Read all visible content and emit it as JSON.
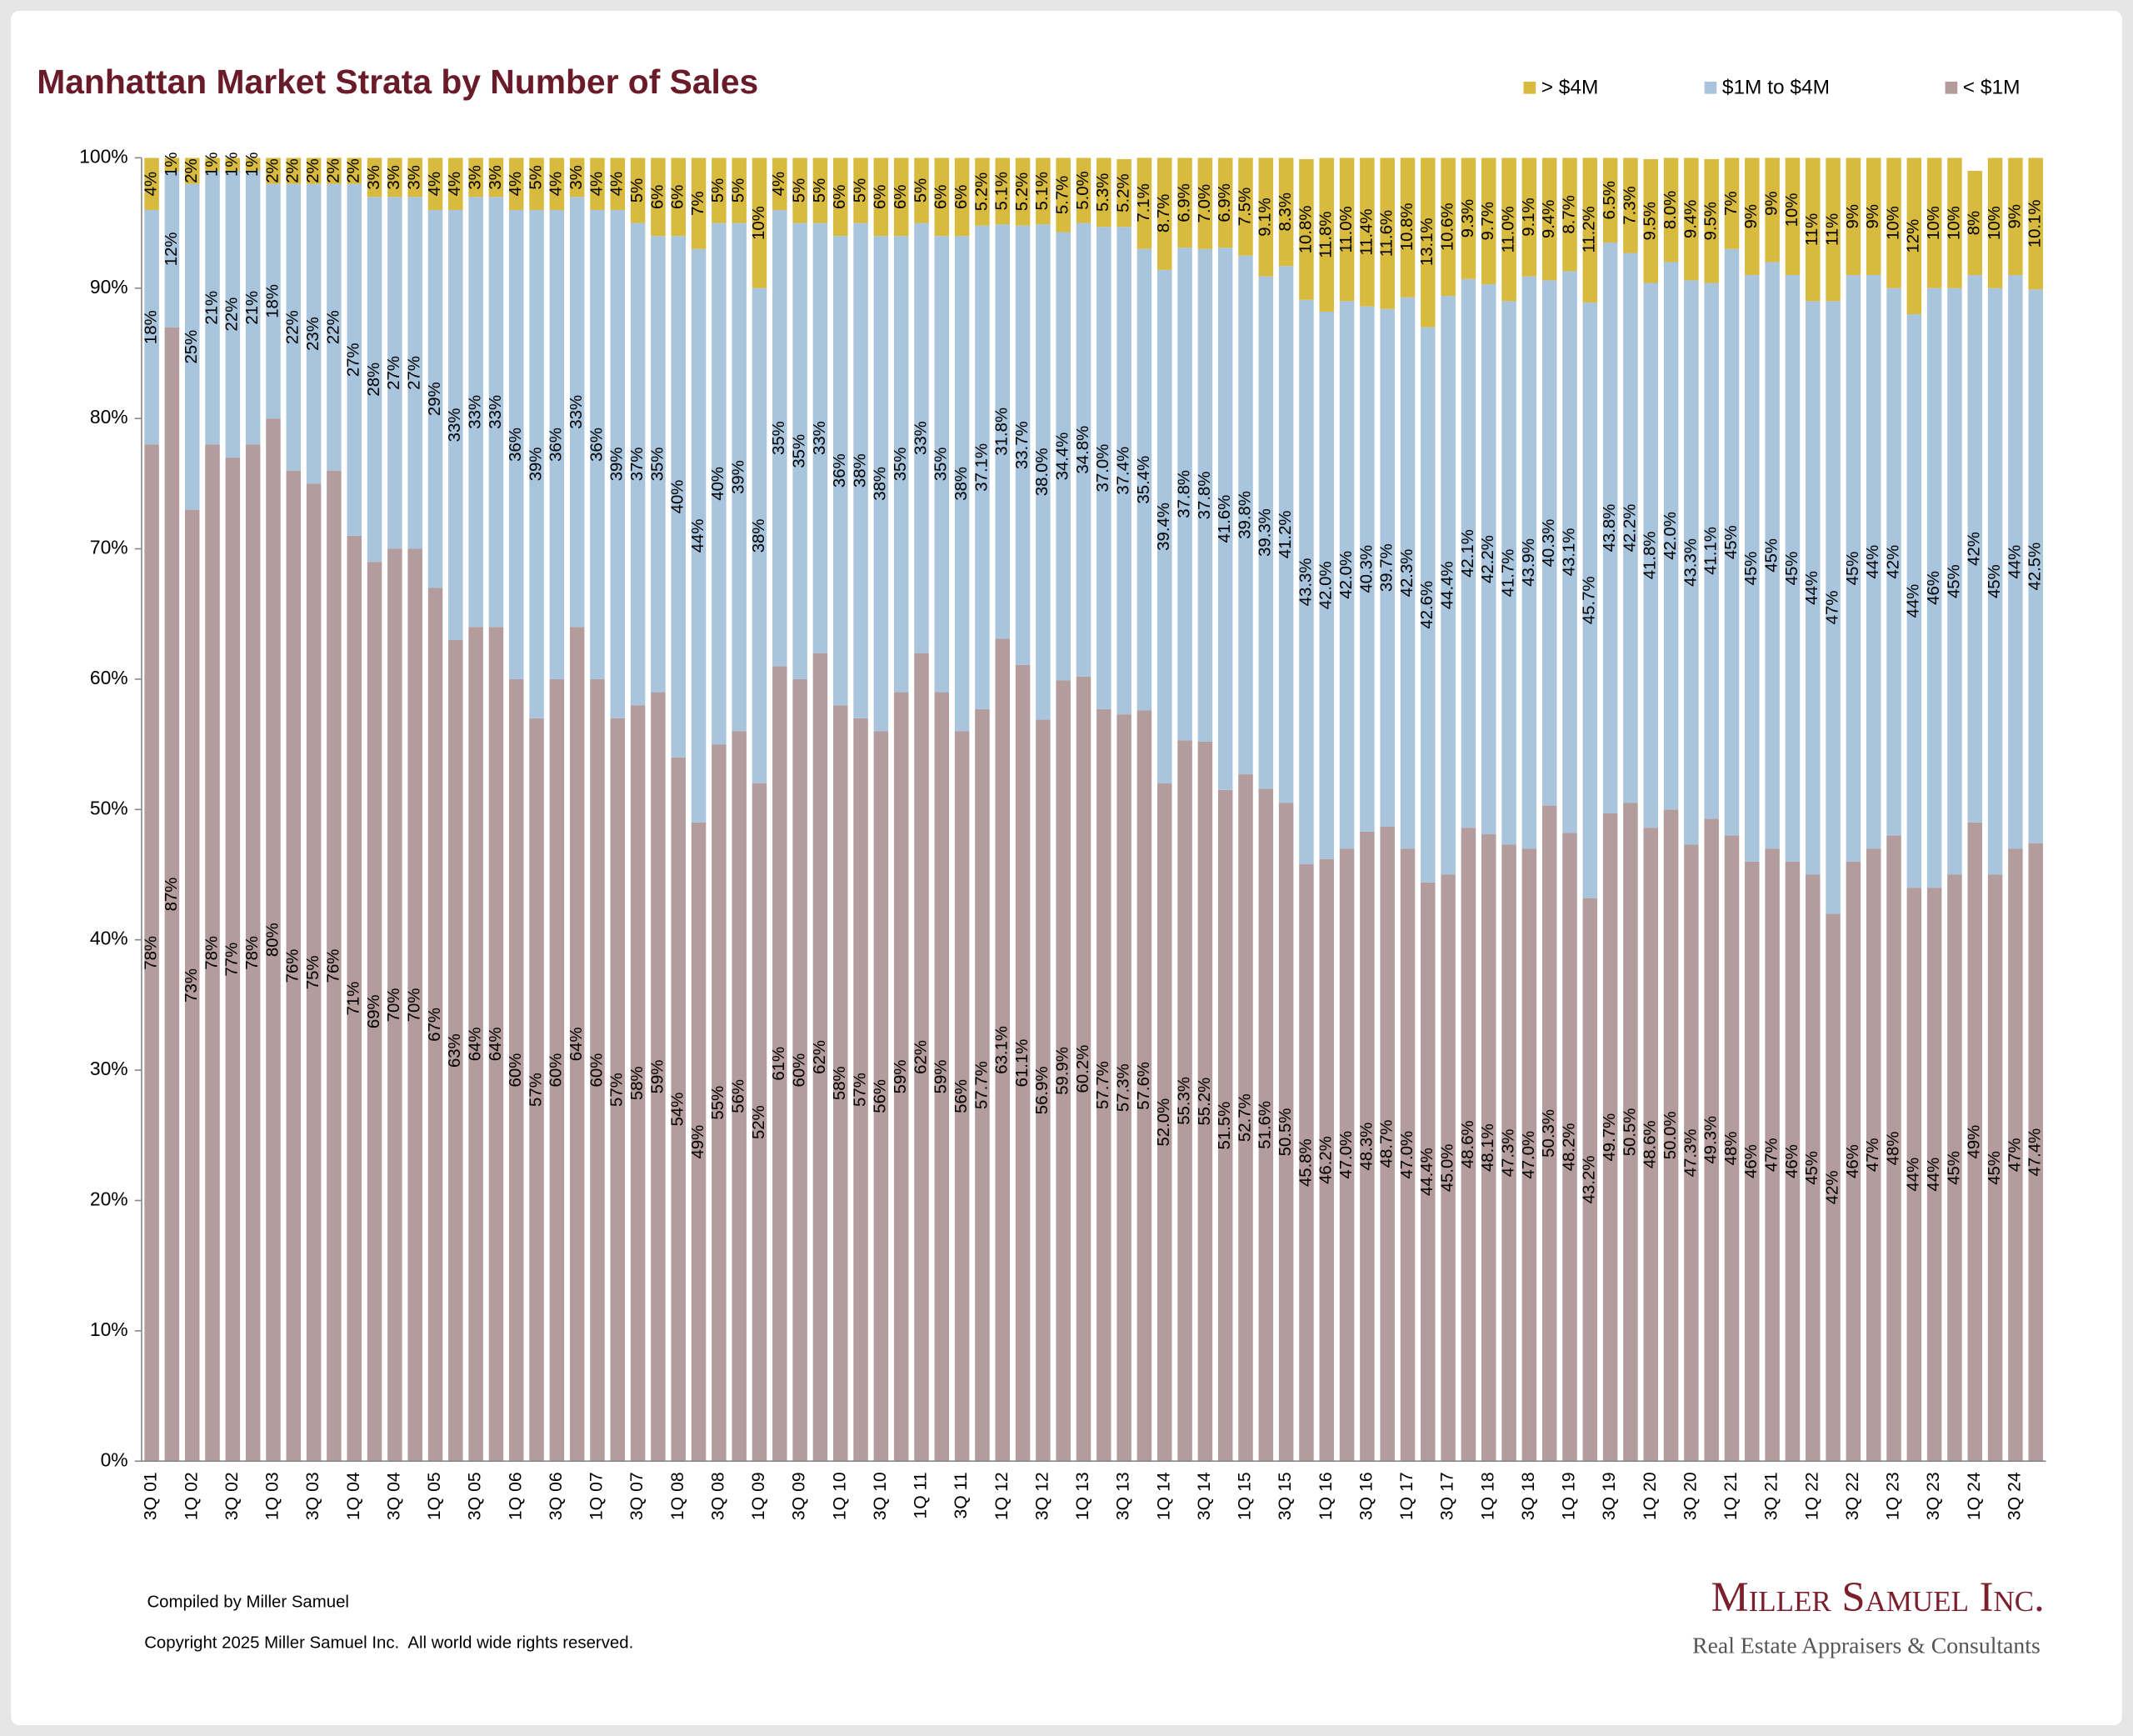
{
  "chart_data": {
    "type": "stacked-bar",
    "title": "Manhattan Market Strata by Number of Sales",
    "categories": [
      "3Q 01",
      null,
      "1Q 02",
      null,
      "3Q 02",
      null,
      "1Q 03",
      null,
      "3Q 03",
      null,
      "1Q 04",
      null,
      "3Q 04",
      null,
      "1Q 05",
      null,
      "3Q 05",
      null,
      "1Q 06",
      null,
      "3Q 06",
      null,
      "1Q 07",
      null,
      "3Q 07",
      null,
      "1Q 08",
      null,
      "3Q 08",
      null,
      "1Q 09",
      null,
      "3Q 09",
      null,
      "1Q 10",
      null,
      "3Q 10",
      null,
      "1Q 11",
      null,
      "3Q 11",
      null,
      "1Q 12",
      null,
      "3Q 12",
      null,
      "1Q 13",
      null,
      "3Q 13",
      null,
      "1Q 14",
      null,
      "3Q 14",
      null,
      "1Q 15",
      null,
      "3Q 15",
      null,
      "1Q 16",
      null,
      "3Q 16",
      null,
      "1Q 17",
      null,
      "3Q 17",
      null,
      "1Q 18",
      null,
      "3Q 18",
      null,
      "1Q 19",
      null,
      "3Q 19",
      null,
      "1Q 20",
      null,
      "3Q 20",
      null,
      "1Q 21",
      null,
      "3Q 21",
      null,
      "1Q 22",
      null,
      "3Q 22",
      null,
      "1Q 23",
      null,
      "3Q 23",
      null,
      "1Q 24",
      null,
      "3Q 24",
      null
    ],
    "series": [
      {
        "name": "< $1M",
        "color": "#b49c9c",
        "values": [
          78,
          87,
          73,
          78,
          77,
          78,
          80,
          76,
          75,
          76,
          71,
          69,
          70,
          70,
          67,
          63,
          64,
          64,
          60,
          57,
          60,
          64,
          60,
          57,
          58,
          59,
          54,
          49,
          55,
          56,
          52,
          61,
          60,
          62,
          58,
          57,
          56,
          59,
          62,
          59,
          56,
          57.7,
          63.1,
          61.1,
          56.9,
          59.9,
          60.2,
          57.7,
          57.3,
          57.6,
          52.0,
          55.3,
          55.2,
          51.5,
          52.7,
          51.6,
          50.5,
          45.8,
          46.2,
          47.0,
          48.3,
          48.7,
          47.0,
          44.4,
          45.0,
          48.6,
          48.1,
          47.3,
          47.0,
          50.3,
          48.2,
          43.2,
          49.7,
          50.5,
          48.6,
          50.0,
          47.3,
          49.3,
          48,
          46,
          47,
          46,
          45,
          42,
          46,
          47,
          48,
          44,
          44,
          45,
          49,
          45,
          47,
          47.4
        ],
        "value_labels": [
          "78%",
          "87%",
          "73%",
          "78%",
          "77%",
          "78%",
          "80%",
          "76%",
          "75%",
          "76%",
          "71%",
          "69%",
          "70%",
          "70%",
          "67%",
          "63%",
          "64%",
          "64%",
          "60%",
          "57%",
          "60%",
          "64%",
          "60%",
          "57%",
          "58%",
          "59%",
          "54%",
          "49%",
          "55%",
          "56%",
          "52%",
          "61%",
          "60%",
          "62%",
          "58%",
          "57%",
          "56%",
          "59%",
          "62%",
          "59%",
          "56%",
          "57.7%",
          "63.1%",
          "61.1%",
          "56.9%",
          "59.9%",
          "60.2%",
          "57.7%",
          "57.3%",
          "57.6%",
          "52.0%",
          "55.3%",
          "55.2%",
          "51.5%",
          "52.7%",
          "51.6%",
          "50.5%",
          "45.8%",
          "46.2%",
          "47.0%",
          "48.3%",
          "48.7%",
          "47.0%",
          "44.4%",
          "45.0%",
          "48.6%",
          "48.1%",
          "47.3%",
          "47.0%",
          "50.3%",
          "48.2%",
          "43.2%",
          "49.7%",
          "50.5%",
          "48.6%",
          "50.0%",
          "47.3%",
          "49.3%",
          "48%",
          "46%",
          "47%",
          "46%",
          "45%",
          "42%",
          "46%",
          "47%",
          "48%",
          "44%",
          "44%",
          "45%",
          "49%",
          "45%",
          "47%",
          "47.4%"
        ]
      },
      {
        "name": "$1M to $4M",
        "color": "#a9c5dd",
        "values": [
          18,
          12,
          25,
          21,
          22,
          21,
          18,
          22,
          23,
          22,
          27,
          28,
          27,
          27,
          29,
          33,
          33,
          33,
          36,
          39,
          36,
          33,
          36,
          39,
          37,
          35,
          40,
          44,
          40,
          39,
          38,
          35,
          35,
          33,
          36,
          38,
          38,
          35,
          33,
          35,
          38,
          37.1,
          31.8,
          33.7,
          38.0,
          34.4,
          34.8,
          37.0,
          37.4,
          35.4,
          39.4,
          37.8,
          37.8,
          41.6,
          39.8,
          39.3,
          41.2,
          43.3,
          42.0,
          42.0,
          40.3,
          39.7,
          42.3,
          42.6,
          44.4,
          42.1,
          42.2,
          41.7,
          43.9,
          40.3,
          43.1,
          45.7,
          43.8,
          42.2,
          41.8,
          42.0,
          43.3,
          41.1,
          45,
          45,
          45,
          45,
          44,
          47,
          45,
          44,
          42,
          44,
          46,
          45,
          42,
          45,
          44,
          42.5
        ],
        "value_labels": [
          "18%",
          "12%",
          "25%",
          "21%",
          "22%",
          "21%",
          "18%",
          "22%",
          "23%",
          "22%",
          "27%",
          "28%",
          "27%",
          "27%",
          "29%",
          "33%",
          "33%",
          "33%",
          "36%",
          "39%",
          "36%",
          "33%",
          "36%",
          "39%",
          "37%",
          "35%",
          "40%",
          "44%",
          "40%",
          "39%",
          "38%",
          "35%",
          "35%",
          "33%",
          "36%",
          "38%",
          "38%",
          "35%",
          "33%",
          "35%",
          "38%",
          "37.1%",
          "31.8%",
          "33.7%",
          "38.0%",
          "34.4%",
          "34.8%",
          "37.0%",
          "37.4%",
          "35.4%",
          "39.4%",
          "37.8%",
          "37.8%",
          "41.6%",
          "39.8%",
          "39.3%",
          "41.2%",
          "43.3%",
          "42.0%",
          "42.0%",
          "40.3%",
          "39.7%",
          "42.3%",
          "42.6%",
          "44.4%",
          "42.1%",
          "42.2%",
          "41.7%",
          "43.9%",
          "40.3%",
          "43.1%",
          "45.7%",
          "43.8%",
          "42.2%",
          "41.8%",
          "42.0%",
          "43.3%",
          "41.1%",
          "45%",
          "45%",
          "45%",
          "45%",
          "44%",
          "47%",
          "45%",
          "44%",
          "42%",
          "44%",
          "46%",
          "45%",
          "42%",
          "45%",
          "44%",
          "42.5%"
        ]
      },
      {
        "name": "> $4M",
        "color": "#d8ba3e",
        "values": [
          4,
          1,
          2,
          1,
          1,
          1,
          2,
          2,
          2,
          2,
          2,
          3,
          3,
          3,
          4,
          4,
          3,
          3,
          4,
          5,
          4,
          3,
          4,
          4,
          5,
          6,
          6,
          7,
          5,
          5,
          10,
          4,
          5,
          5,
          6,
          5,
          6,
          6,
          5,
          6,
          6,
          5.2,
          5.1,
          5.2,
          5.1,
          5.7,
          5.0,
          5.3,
          5.2,
          7.1,
          8.7,
          6.9,
          7.0,
          6.9,
          7.5,
          9.1,
          8.3,
          10.8,
          11.8,
          11.0,
          11.4,
          11.6,
          10.8,
          13.1,
          10.6,
          9.3,
          9.7,
          11.0,
          9.1,
          9.4,
          8.7,
          11.2,
          6.5,
          7.3,
          9.5,
          8.0,
          9.4,
          9.5,
          7,
          9,
          9,
          10,
          11,
          11,
          9,
          9,
          10,
          12,
          10,
          10,
          8,
          10,
          9,
          10.1
        ],
        "value_labels": [
          "4%",
          "1%",
          "2%",
          "1%",
          "1%",
          "1%",
          "2%",
          "2%",
          "2%",
          "2%",
          "2%",
          "3%",
          "3%",
          "3%",
          "4%",
          "4%",
          "3%",
          "3%",
          "4%",
          "5%",
          "4%",
          "3%",
          "4%",
          "4%",
          "5%",
          "6%",
          "6%",
          "7%",
          "5%",
          "5%",
          "10%",
          "4%",
          "5%",
          "5%",
          "6%",
          "5%",
          "6%",
          "6%",
          "5%",
          "6%",
          "6%",
          "5.2%",
          "5.1%",
          "5.2%",
          "5.1%",
          "5.7%",
          "5.0%",
          "5.3%",
          "5.2%",
          "7.1%",
          "8.7%",
          "6.9%",
          "7.0%",
          "6.9%",
          "7.5%",
          "9.1%",
          "8.3%",
          "10.8%",
          "11.8%",
          "11.0%",
          "11.4%",
          "11.6%",
          "10.8%",
          "13.1%",
          "10.6%",
          "9.3%",
          "9.7%",
          "11.0%",
          "9.1%",
          "9.4%",
          "8.7%",
          "11.2%",
          "6.5%",
          "7.3%",
          "9.5%",
          "8.0%",
          "9.4%",
          "9.5%",
          "7%",
          "9%",
          "9%",
          "10%",
          "11%",
          "11%",
          "9%",
          "9%",
          "10%",
          "12%",
          "10%",
          "10%",
          "8%",
          "10%",
          "9%",
          "10.1%"
        ]
      }
    ],
    "ylim": [
      0,
      100
    ],
    "yticks": [
      {
        "value": 0,
        "label": "0%"
      },
      {
        "value": 10,
        "label": "10%"
      },
      {
        "value": 20,
        "label": "20%"
      },
      {
        "value": 30,
        "label": "30%"
      },
      {
        "value": 40,
        "label": "40%"
      },
      {
        "value": 50,
        "label": "50%"
      },
      {
        "value": 60,
        "label": "60%"
      },
      {
        "value": 70,
        "label": "70%"
      },
      {
        "value": 80,
        "label": "80%"
      },
      {
        "value": 90,
        "label": "90%"
      },
      {
        "value": 100,
        "label": "100%"
      }
    ],
    "grid": false
  },
  "footer": {
    "compiled": "Compiled by Miller Samuel",
    "copyright": "Copyright 2025 Miller Samuel Inc.  All world wide rights reserved."
  },
  "logo": {
    "name": "Miller Samuel Inc.",
    "tagline": "Real Estate Appraisers & Consultants"
  }
}
